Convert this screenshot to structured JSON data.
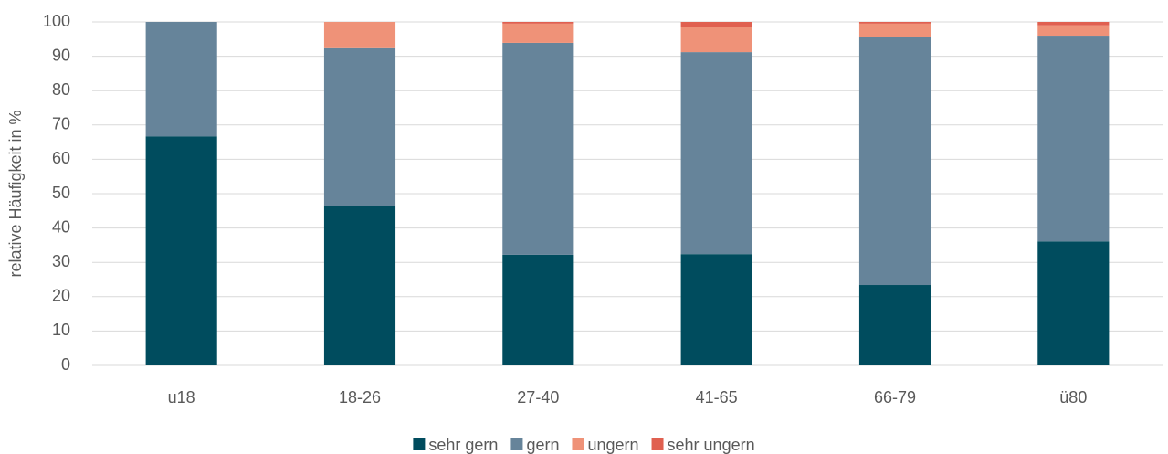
{
  "chart_data": {
    "type": "stacked_bar",
    "y_label": "relative Häufigkeit in %",
    "categories": [
      "u18",
      "18-26",
      "27-40",
      "41-65",
      "66-79",
      "ü80"
    ],
    "series": [
      {
        "name": "sehr gern",
        "color": "#004c5e",
        "values": [
          66.7,
          46.3,
          32.2,
          32.4,
          23.4,
          36.1
        ]
      },
      {
        "name": "gern",
        "color": "#66849a",
        "values": [
          33.3,
          46.3,
          61.7,
          58.8,
          72.3,
          59.9
        ]
      },
      {
        "name": "ungern",
        "color": "#ef9278",
        "values": [
          0,
          7.4,
          5.6,
          7.2,
          3.8,
          3.0
        ]
      },
      {
        "name": "sehr ungern",
        "color": "#e06050",
        "values": [
          0,
          0,
          0.5,
          1.6,
          0.5,
          1.0
        ]
      }
    ],
    "ylim": [
      0,
      100
    ],
    "yticks": [
      0,
      10,
      20,
      30,
      40,
      50,
      60,
      70,
      80,
      90,
      100
    ],
    "grid": true,
    "legend": "bottom"
  }
}
